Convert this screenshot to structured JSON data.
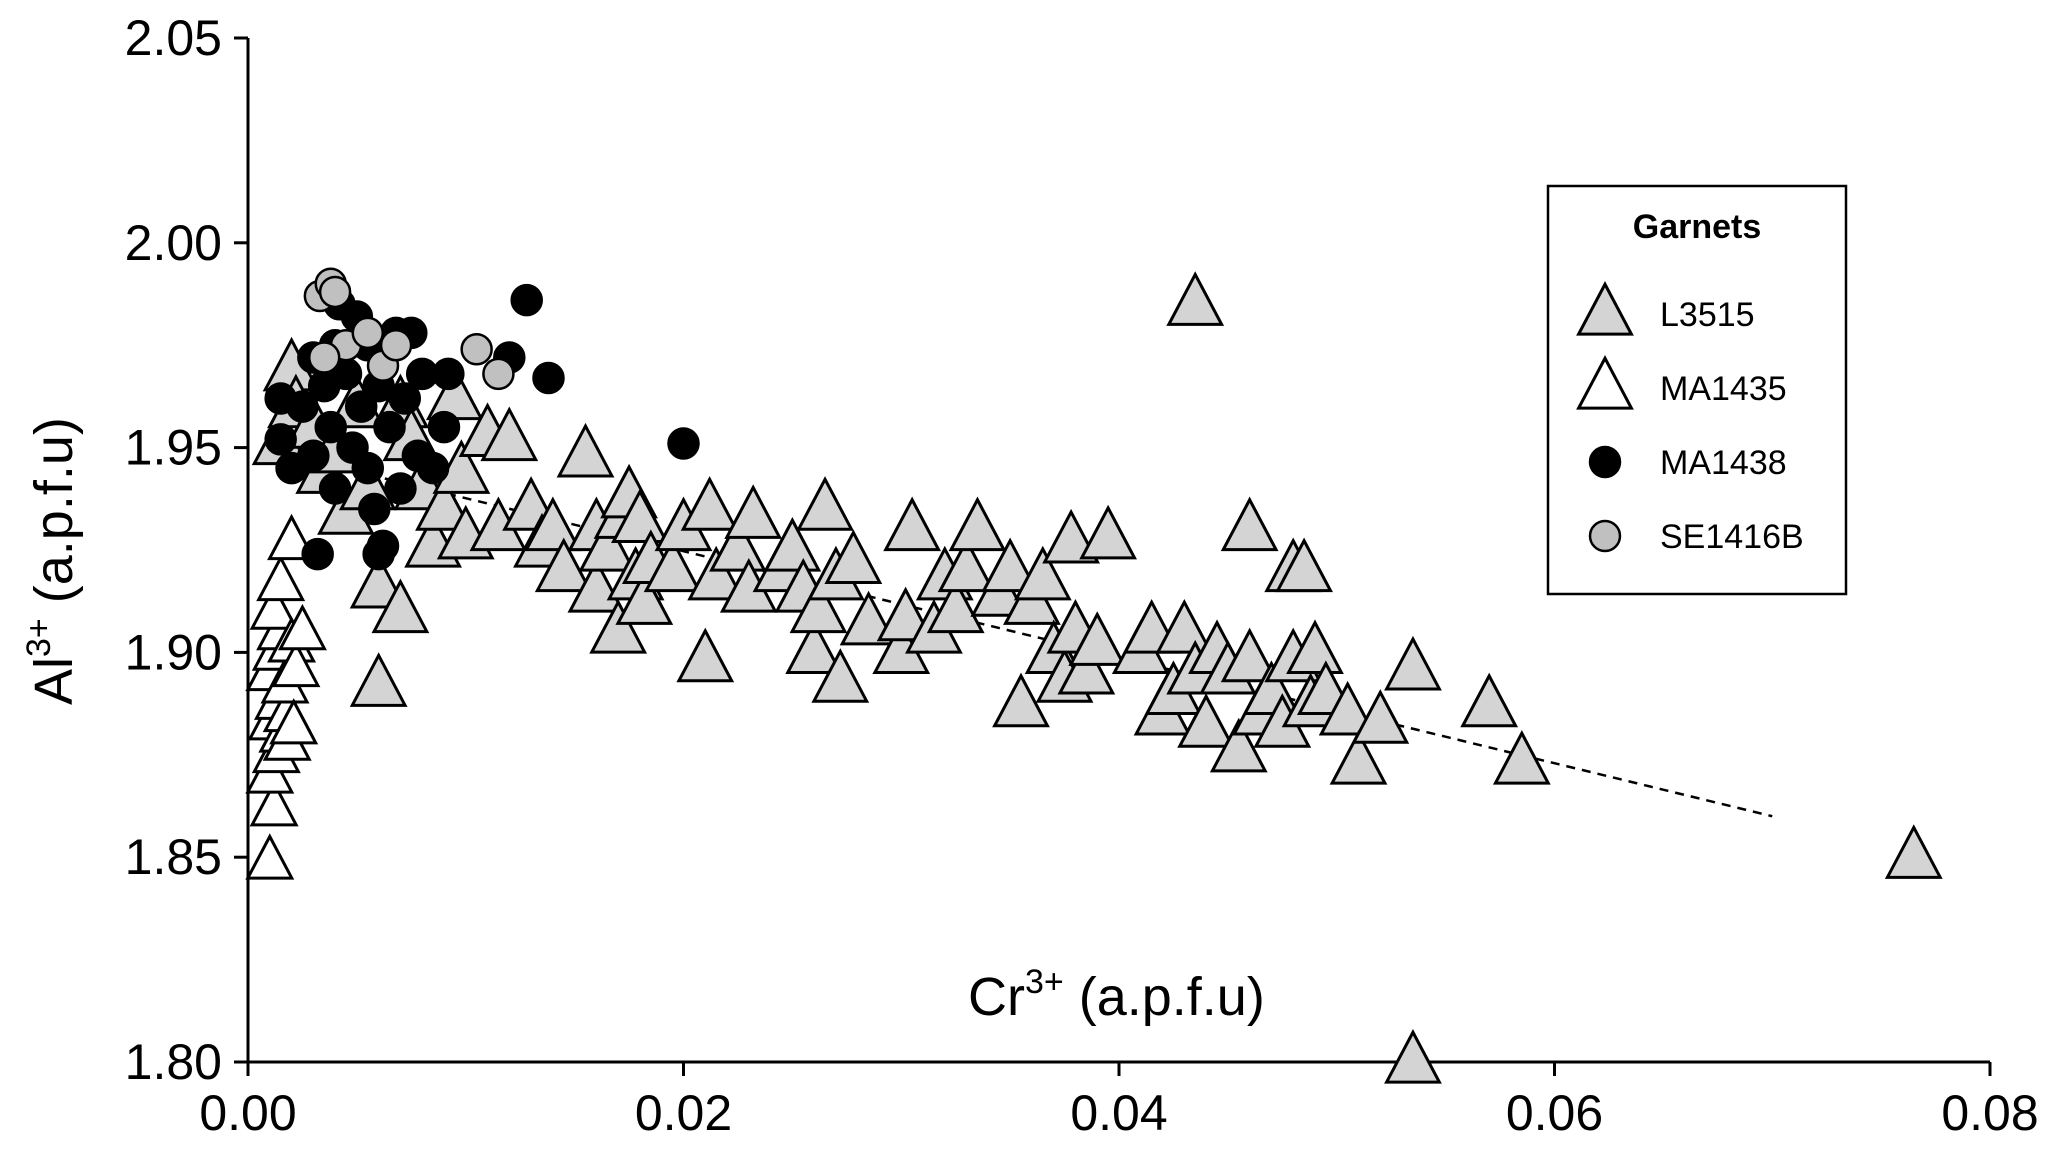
{
  "chart_data": {
    "type": "scatter",
    "title": "",
    "xlabel": "Cr",
    "xlabel_sup": "3+",
    "xlabel_unit": " (a.p.f.u)",
    "ylabel": "Al",
    "ylabel_sup": "3+",
    "ylabel_unit": " (a.p.f.u)",
    "xlim": [
      0,
      0.08
    ],
    "ylim": [
      1.8,
      2.05
    ],
    "x_ticks": [
      0,
      0.02,
      0.04,
      0.06,
      0.08
    ],
    "x_tick_labels": [
      "0.00",
      "0.02",
      "0.04",
      "0.06",
      "0.08"
    ],
    "y_ticks": [
      1.8,
      1.85,
      1.9,
      1.95,
      2.0,
      2.05
    ],
    "y_tick_labels": [
      "1.80",
      "1.85",
      "1.90",
      "1.95",
      "2.00",
      "2.05"
    ],
    "grid": false,
    "legend": {
      "title": "Garnets",
      "placement": "top-right"
    },
    "trendline": {
      "style": "dashed",
      "x": [
        0.002,
        0.07
      ],
      "y": [
        1.948,
        1.86
      ]
    },
    "series": [
      {
        "name": "L3515",
        "marker": "triangle",
        "fill": "#d4d4d4",
        "points": [
          [
            0.0015,
            1.951
          ],
          [
            0.002,
            1.969
          ],
          [
            0.0022,
            1.96
          ],
          [
            0.003,
            1.955
          ],
          [
            0.0035,
            1.944
          ],
          [
            0.004,
            1.949
          ],
          [
            0.0045,
            1.934
          ],
          [
            0.005,
            1.96
          ],
          [
            0.0055,
            1.94
          ],
          [
            0.006,
            1.916
          ],
          [
            0.006,
            1.892
          ],
          [
            0.007,
            1.96
          ],
          [
            0.007,
            1.91
          ],
          [
            0.0075,
            1.952
          ],
          [
            0.008,
            1.94
          ],
          [
            0.0085,
            1.926
          ],
          [
            0.009,
            1.935
          ],
          [
            0.0095,
            1.962
          ],
          [
            0.0098,
            1.944
          ],
          [
            0.01,
            1.928
          ],
          [
            0.011,
            1.953
          ],
          [
            0.0115,
            1.93
          ],
          [
            0.012,
            1.952
          ],
          [
            0.013,
            1.935
          ],
          [
            0.0135,
            1.926
          ],
          [
            0.014,
            1.93
          ],
          [
            0.0145,
            1.92
          ],
          [
            0.0155,
            1.948
          ],
          [
            0.016,
            1.93
          ],
          [
            0.016,
            1.915
          ],
          [
            0.0165,
            1.925
          ],
          [
            0.017,
            1.905
          ],
          [
            0.0172,
            1.933
          ],
          [
            0.0175,
            1.938
          ],
          [
            0.0178,
            1.918
          ],
          [
            0.018,
            1.932
          ],
          [
            0.0182,
            1.912
          ],
          [
            0.0185,
            1.922
          ],
          [
            0.0195,
            1.92
          ],
          [
            0.02,
            1.93
          ],
          [
            0.021,
            1.898
          ],
          [
            0.0212,
            1.935
          ],
          [
            0.0215,
            1.918
          ],
          [
            0.0225,
            1.925
          ],
          [
            0.023,
            1.915
          ],
          [
            0.0232,
            1.933
          ],
          [
            0.0245,
            1.92
          ],
          [
            0.025,
            1.925
          ],
          [
            0.0255,
            1.915
          ],
          [
            0.026,
            1.9
          ],
          [
            0.0262,
            1.91
          ],
          [
            0.0265,
            1.935
          ],
          [
            0.027,
            1.918
          ],
          [
            0.0272,
            1.893
          ],
          [
            0.0278,
            1.922
          ],
          [
            0.0285,
            1.907
          ],
          [
            0.03,
            1.9
          ],
          [
            0.0302,
            1.908
          ],
          [
            0.0305,
            1.93
          ],
          [
            0.0315,
            1.905
          ],
          [
            0.032,
            1.918
          ],
          [
            0.0325,
            1.91
          ],
          [
            0.033,
            1.92
          ],
          [
            0.0335,
            1.93
          ],
          [
            0.0345,
            1.914
          ],
          [
            0.035,
            1.92
          ],
          [
            0.0355,
            1.887
          ],
          [
            0.036,
            1.912
          ],
          [
            0.0365,
            1.918
          ],
          [
            0.037,
            1.9
          ],
          [
            0.0375,
            1.893
          ],
          [
            0.0378,
            1.927
          ],
          [
            0.038,
            1.905
          ],
          [
            0.0385,
            1.895
          ],
          [
            0.039,
            1.902
          ],
          [
            0.0395,
            1.928
          ],
          [
            0.041,
            1.9
          ],
          [
            0.0415,
            1.905
          ],
          [
            0.042,
            1.885
          ],
          [
            0.0425,
            1.89
          ],
          [
            0.043,
            1.905
          ],
          [
            0.0435,
            1.895
          ],
          [
            0.0435,
            1.985
          ],
          [
            0.044,
            1.882
          ],
          [
            0.0445,
            1.9
          ],
          [
            0.045,
            1.895
          ],
          [
            0.0455,
            1.876
          ],
          [
            0.046,
            1.93
          ],
          [
            0.046,
            1.898
          ],
          [
            0.0465,
            1.885
          ],
          [
            0.047,
            1.89
          ],
          [
            0.0475,
            1.882
          ],
          [
            0.048,
            1.92
          ],
          [
            0.048,
            1.898
          ],
          [
            0.0485,
            1.92
          ],
          [
            0.0488,
            1.887
          ],
          [
            0.049,
            1.9
          ],
          [
            0.0495,
            1.89
          ],
          [
            0.0505,
            1.885
          ],
          [
            0.051,
            1.873
          ],
          [
            0.052,
            1.883
          ],
          [
            0.0535,
            1.896
          ],
          [
            0.0535,
            1.8
          ],
          [
            0.057,
            1.887
          ],
          [
            0.0585,
            1.873
          ],
          [
            0.0765,
            1.85
          ]
        ]
      },
      {
        "name": "MA1435",
        "marker": "triangle",
        "fill": "#ffffff",
        "points": [
          [
            0.001,
            1.849
          ],
          [
            0.0012,
            1.862
          ],
          [
            0.001,
            1.87
          ],
          [
            0.0013,
            1.875
          ],
          [
            0.0011,
            1.883
          ],
          [
            0.0014,
            1.888
          ],
          [
            0.001,
            1.895
          ],
          [
            0.0013,
            1.9
          ],
          [
            0.0015,
            1.905
          ],
          [
            0.0012,
            1.91
          ],
          [
            0.0016,
            1.88
          ],
          [
            0.0018,
            1.885
          ],
          [
            0.0017,
            1.892
          ],
          [
            0.002,
            1.902
          ],
          [
            0.0022,
            1.896
          ],
          [
            0.0015,
            1.917
          ],
          [
            0.002,
            1.927
          ],
          [
            0.0025,
            1.905
          ],
          [
            0.0018,
            1.878
          ],
          [
            0.0021,
            1.882
          ]
        ]
      },
      {
        "name": "MA1438",
        "marker": "circle",
        "fill": "#000000",
        "points": [
          [
            0.0015,
            1.952
          ],
          [
            0.0015,
            1.962
          ],
          [
            0.002,
            1.945
          ],
          [
            0.0025,
            1.96
          ],
          [
            0.003,
            1.948
          ],
          [
            0.003,
            1.972
          ],
          [
            0.0032,
            1.924
          ],
          [
            0.0035,
            1.965
          ],
          [
            0.0038,
            1.955
          ],
          [
            0.004,
            1.94
          ],
          [
            0.004,
            1.975
          ],
          [
            0.0042,
            1.985
          ],
          [
            0.0045,
            1.968
          ],
          [
            0.0048,
            1.95
          ],
          [
            0.005,
            1.982
          ],
          [
            0.0052,
            1.96
          ],
          [
            0.0055,
            1.975
          ],
          [
            0.0055,
            1.945
          ],
          [
            0.0058,
            1.935
          ],
          [
            0.006,
            1.965
          ],
          [
            0.006,
            1.924
          ],
          [
            0.0062,
            1.926
          ],
          [
            0.0065,
            1.955
          ],
          [
            0.0068,
            1.978
          ],
          [
            0.007,
            1.94
          ],
          [
            0.0072,
            1.962
          ],
          [
            0.0075,
            1.978
          ],
          [
            0.0078,
            1.948
          ],
          [
            0.008,
            1.968
          ],
          [
            0.0085,
            1.945
          ],
          [
            0.009,
            1.955
          ],
          [
            0.0092,
            1.968
          ],
          [
            0.0128,
            1.986
          ],
          [
            0.012,
            1.972
          ],
          [
            0.0138,
            1.967
          ],
          [
            0.02,
            1.951
          ]
        ]
      },
      {
        "name": "SE1416B",
        "marker": "circle",
        "fill": "#c0c0c0",
        "points": [
          [
            0.0033,
            1.987
          ],
          [
            0.0038,
            1.99
          ],
          [
            0.004,
            1.988
          ],
          [
            0.0045,
            1.975
          ],
          [
            0.0035,
            1.972
          ],
          [
            0.0055,
            1.978
          ],
          [
            0.0062,
            1.97
          ],
          [
            0.0068,
            1.975
          ],
          [
            0.0105,
            1.974
          ],
          [
            0.0115,
            1.968
          ]
        ]
      }
    ]
  }
}
